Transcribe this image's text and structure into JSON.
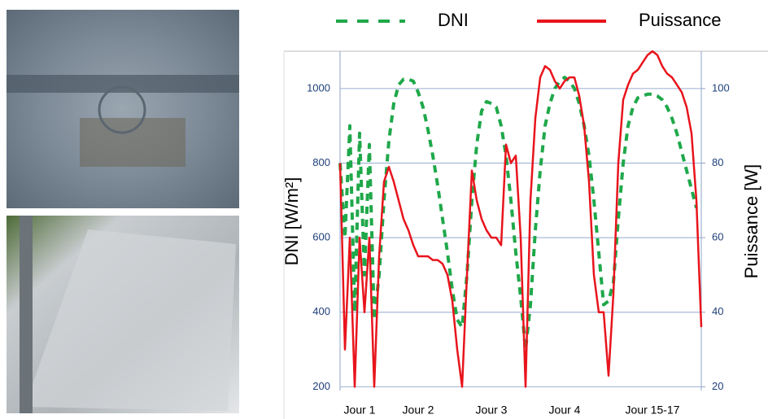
{
  "chart_data": {
    "type": "line",
    "ylabel": "DNI [W/m²]",
    "y2label": "Puissance [W]",
    "categories": [
      null,
      null,
      null,
      null,
      "Jour 1",
      null,
      null,
      null,
      null,
      null,
      null,
      null,
      null,
      null,
      null,
      null,
      "Jour 2",
      null,
      null,
      null,
      null,
      null,
      null,
      null,
      null,
      null,
      null,
      null,
      null,
      null,
      null,
      "Jour 3",
      null,
      null,
      null,
      null,
      null,
      null,
      null,
      null,
      null,
      null,
      null,
      null,
      null,
      null,
      "Jour 4",
      null,
      null,
      null,
      null,
      null,
      null,
      null,
      null,
      null,
      null,
      null,
      null,
      null,
      null,
      null,
      null,
      null,
      "Jour 15-17",
      null,
      null,
      null,
      null,
      null,
      null,
      null,
      null,
      null,
      null
    ],
    "series": [
      {
        "name": "DNI",
        "color": "#1fa84a",
        "dashed": true,
        "axis": "y",
        "values": [
          800,
          600,
          900,
          400,
          880,
          500,
          850,
          380,
          500,
          700,
          860,
          960,
          1010,
          1025,
          1025,
          1020,
          990,
          950,
          890,
          820,
          740,
          650,
          560,
          460,
          380,
          360,
          500,
          700,
          850,
          940,
          965,
          960,
          950,
          900,
          820,
          700,
          560,
          440,
          300,
          420,
          620,
          780,
          900,
          960,
          1000,
          1020,
          1030,
          1020,
          1000,
          960,
          900,
          820,
          700,
          560,
          420,
          430,
          480,
          650,
          800,
          900,
          950,
          975,
          980,
          985,
          985,
          980,
          970,
          950,
          920,
          880,
          830,
          780,
          730,
          680,
          null
        ]
      },
      {
        "name": "Puissance",
        "color": "#e8141c",
        "dashed": false,
        "axis": "y2",
        "values": [
          80,
          30,
          60,
          20,
          60,
          40,
          60,
          20,
          55,
          75,
          79,
          75,
          70,
          65,
          62,
          58,
          55,
          55,
          55,
          54,
          54,
          53,
          50,
          43,
          30,
          20,
          50,
          78,
          70,
          65,
          62,
          60,
          60,
          58,
          85,
          80,
          82,
          60,
          20,
          70,
          92,
          103,
          106,
          105,
          102,
          100,
          102,
          103,
          103,
          98,
          90,
          75,
          50,
          40,
          40,
          23,
          45,
          80,
          97,
          101,
          104,
          105,
          107,
          109,
          110,
          109,
          106,
          104,
          103,
          101,
          99,
          95,
          88,
          70,
          36
        ]
      }
    ],
    "ylim": [
      190,
      1100
    ],
    "yticks": [
      200,
      400,
      600,
      800,
      1000
    ],
    "y2lim": [
      19,
      110
    ],
    "y2ticks": [
      20,
      40,
      60,
      80,
      100
    ],
    "grid": true,
    "legend": "top"
  }
}
